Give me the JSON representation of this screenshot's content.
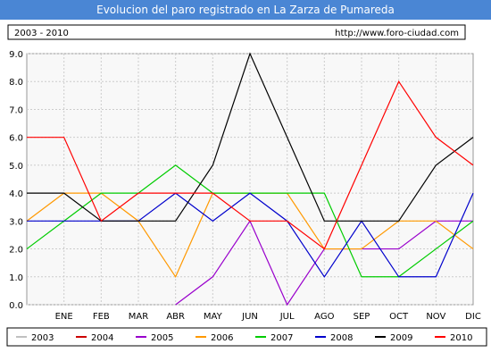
{
  "chart_data": {
    "type": "line",
    "title": "Evolucion del paro registrado en La Zarza de Pumareda",
    "subtitle": "2003 - 2010",
    "source": "http://www.foro-ciudad.com",
    "categories": [
      null,
      "ENE",
      "FEB",
      "MAR",
      "ABR",
      "MAY",
      "JUN",
      "JUL",
      "AGO",
      "SEP",
      "OCT",
      "NOV",
      "DIC"
    ],
    "ylim": [
      0,
      9
    ],
    "yticks": [
      {
        "value": 0,
        "label": "0.0"
      },
      {
        "value": 1,
        "label": "1.0"
      },
      {
        "value": 2,
        "label": "2.0"
      },
      {
        "value": 3,
        "label": "3.0"
      },
      {
        "value": 4,
        "label": "4.0"
      },
      {
        "value": 5,
        "label": "5.0"
      },
      {
        "value": 6,
        "label": "6.0"
      },
      {
        "value": 7,
        "label": "7.0"
      },
      {
        "value": 8,
        "label": "8.0"
      },
      {
        "value": 9,
        "label": "9.0"
      }
    ],
    "grid": true,
    "series": [
      {
        "name": "2003",
        "color": "#c0c0c0",
        "values": [
          null,
          null,
          null,
          null,
          null,
          null,
          null,
          null,
          null,
          null,
          null,
          null,
          null
        ]
      },
      {
        "name": "2004",
        "color": "#cc0000",
        "values": [
          null,
          null,
          null,
          null,
          null,
          null,
          null,
          null,
          null,
          null,
          null,
          null,
          null
        ]
      },
      {
        "name": "2005",
        "color": "#9900cc",
        "values": [
          null,
          null,
          null,
          null,
          0,
          1,
          3,
          0,
          2,
          2,
          2,
          3,
          3
        ]
      },
      {
        "name": "2006",
        "color": "#ff9900",
        "values": [
          3,
          4,
          4,
          3,
          1,
          4,
          4,
          4,
          2,
          2,
          3,
          3,
          2
        ]
      },
      {
        "name": "2007",
        "color": "#00cc00",
        "values": [
          2,
          3,
          4,
          4,
          5,
          4,
          4,
          4,
          4,
          1,
          1,
          2,
          3
        ]
      },
      {
        "name": "2008",
        "color": "#0000cc",
        "values": [
          3,
          3,
          3,
          3,
          4,
          3,
          4,
          3,
          1,
          3,
          1,
          1,
          4
        ]
      },
      {
        "name": "2009",
        "color": "#000000",
        "values": [
          4,
          4,
          3,
          3,
          3,
          5,
          9,
          6,
          3,
          3,
          3,
          5,
          6
        ]
      },
      {
        "name": "2010",
        "color": "#ff0000",
        "values": [
          6,
          6,
          3,
          4,
          4,
          4,
          3,
          3,
          2,
          5,
          8,
          6,
          5
        ]
      }
    ]
  }
}
